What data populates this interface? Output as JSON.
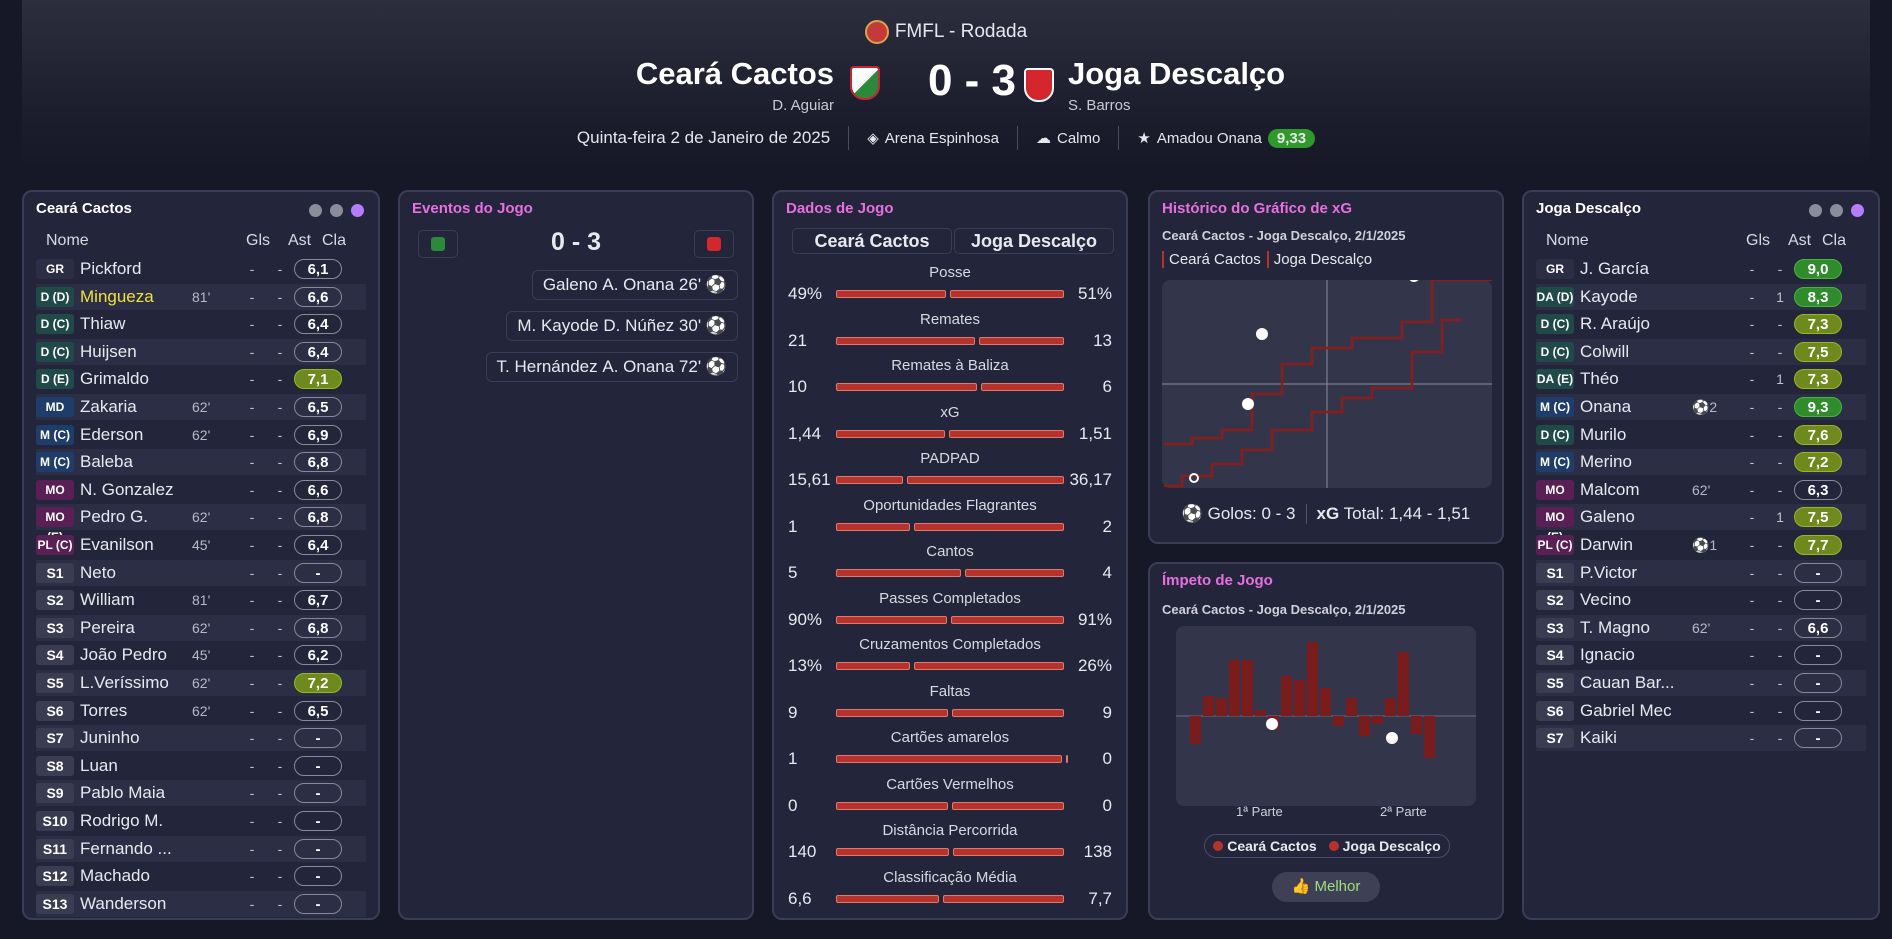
{
  "header": {
    "competition": "FMFL - Rodada",
    "home": "Ceará Cactos",
    "home_manager": "D. Aguiar",
    "away": "Joga Descalço",
    "away_manager": "S. Barros",
    "score": "0 - 3",
    "date": "Quinta-feira 2 de Janeiro de 2025",
    "stadium": "Arena Espinhosa",
    "weather": "Calmo",
    "motm": "Amadou Onana",
    "motm_rating": "9,33"
  },
  "home_panel": {
    "title": "Ceará Cactos",
    "cols": {
      "name": "Nome",
      "gls": "Gls",
      "ast": "Ast",
      "rating": "Cla"
    },
    "players": [
      {
        "pos": "GR",
        "name": "Pickford",
        "sub": "",
        "gls": "-",
        "ast": "-",
        "rating": "6,1"
      },
      {
        "pos": "D (D)",
        "name": "Mingueza",
        "sub": "81'",
        "gls": "-",
        "ast": "-",
        "rating": "6,6"
      },
      {
        "pos": "D (C)",
        "name": "Thiaw",
        "sub": "",
        "gls": "-",
        "ast": "-",
        "rating": "6,4"
      },
      {
        "pos": "D (C)",
        "name": "Huijsen",
        "sub": "",
        "gls": "-",
        "ast": "-",
        "rating": "6,4"
      },
      {
        "pos": "D (E)",
        "name": "Grimaldo",
        "sub": "",
        "gls": "-",
        "ast": "-",
        "rating": "7,1"
      },
      {
        "pos": "MD",
        "name": "Zakaria",
        "sub": "62'",
        "gls": "-",
        "ast": "-",
        "rating": "6,5"
      },
      {
        "pos": "M (C)",
        "name": "Ederson",
        "sub": "62'",
        "gls": "-",
        "ast": "-",
        "rating": "6,9"
      },
      {
        "pos": "M (C)",
        "name": "Baleba",
        "sub": "",
        "gls": "-",
        "ast": "-",
        "rating": "6,8"
      },
      {
        "pos": "MO (D)",
        "name": "N. Gonzalez",
        "sub": "",
        "gls": "-",
        "ast": "-",
        "rating": "6,6"
      },
      {
        "pos": "MO (E)",
        "name": "Pedro G.",
        "sub": "62'",
        "gls": "-",
        "ast": "-",
        "rating": "6,8"
      },
      {
        "pos": "PL (C)",
        "name": "Evanilson",
        "sub": "45'",
        "gls": "-",
        "ast": "-",
        "rating": "6,4"
      },
      {
        "pos": "S1",
        "name": "Neto",
        "sub": "",
        "gls": "-",
        "ast": "-",
        "rating": "-"
      },
      {
        "pos": "S2",
        "name": "William",
        "sub": "81'",
        "gls": "-",
        "ast": "-",
        "rating": "6,7"
      },
      {
        "pos": "S3",
        "name": "Pereira",
        "sub": "62'",
        "gls": "-",
        "ast": "-",
        "rating": "6,8"
      },
      {
        "pos": "S4",
        "name": "João Pedro",
        "sub": "45'",
        "gls": "-",
        "ast": "-",
        "rating": "6,2"
      },
      {
        "pos": "S5",
        "name": "L.Veríssimo",
        "sub": "62'",
        "gls": "-",
        "ast": "-",
        "rating": "7,2"
      },
      {
        "pos": "S6",
        "name": "Torres",
        "sub": "62'",
        "gls": "-",
        "ast": "-",
        "rating": "6,5"
      },
      {
        "pos": "S7",
        "name": "Juninho",
        "sub": "",
        "gls": "-",
        "ast": "-",
        "rating": "-"
      },
      {
        "pos": "S8",
        "name": "Luan",
        "sub": "",
        "gls": "-",
        "ast": "-",
        "rating": "-"
      },
      {
        "pos": "S9",
        "name": "Pablo Maia",
        "sub": "",
        "gls": "-",
        "ast": "-",
        "rating": "-"
      },
      {
        "pos": "S10",
        "name": "Rodrigo M.",
        "sub": "",
        "gls": "-",
        "ast": "-",
        "rating": "-"
      },
      {
        "pos": "S11",
        "name": "Fernando ...",
        "sub": "",
        "gls": "-",
        "ast": "-",
        "rating": "-"
      },
      {
        "pos": "S12",
        "name": "Machado",
        "sub": "",
        "gls": "-",
        "ast": "-",
        "rating": "-"
      },
      {
        "pos": "S13",
        "name": "Wanderson",
        "sub": "",
        "gls": "-",
        "ast": "-",
        "rating": "-"
      }
    ]
  },
  "events": {
    "title": "Eventos do Jogo",
    "score": "0 - 3",
    "items": [
      {
        "assist": "Galeno",
        "scorer": "A. Onana 26'"
      },
      {
        "assist": "M. Kayode",
        "scorer": "D. Núñez 30'"
      },
      {
        "assist": "T. Hernández",
        "scorer": "A. Onana 72'"
      }
    ]
  },
  "stats": {
    "title": "Dados de Jogo",
    "home": "Ceará Cactos",
    "away": "Joga Descalço",
    "rows": [
      {
        "label": "Posse",
        "home": "49%",
        "away": "51%",
        "h": 49,
        "a": 51
      },
      {
        "label": "Remates",
        "home": "21",
        "away": "13",
        "h": 21,
        "a": 13
      },
      {
        "label": "Remates à Baliza",
        "home": "10",
        "away": "6",
        "h": 10,
        "a": 6
      },
      {
        "label": "xG",
        "home": "1,44",
        "away": "1,51",
        "h": 1.44,
        "a": 1.51
      },
      {
        "label": "PADPAD",
        "home": "15,61",
        "away": "36,17",
        "h": 15.61,
        "a": 36.17
      },
      {
        "label": "Oportunidades Flagrantes",
        "home": "1",
        "away": "2",
        "h": 1,
        "a": 2
      },
      {
        "label": "Cantos",
        "home": "5",
        "away": "4",
        "h": 5,
        "a": 4
      },
      {
        "label": "Passes Completados",
        "home": "90%",
        "away": "91%",
        "h": 90,
        "a": 91
      },
      {
        "label": "Cruzamentos Completados",
        "home": "13%",
        "away": "26%",
        "h": 13,
        "a": 26
      },
      {
        "label": "Faltas",
        "home": "9",
        "away": "9",
        "h": 9,
        "a": 9
      },
      {
        "label": "Cartões amarelos",
        "home": "1",
        "away": "0",
        "h": 1,
        "a": 0
      },
      {
        "label": "Cartões Vermelhos",
        "home": "0",
        "away": "0",
        "h": 0,
        "a": 0
      },
      {
        "label": "Distância Percorrida",
        "home": "140",
        "away": "138",
        "h": 140,
        "a": 138
      },
      {
        "label": "Classificação Média",
        "home": "6,6",
        "away": "7,7",
        "h": 6.6,
        "a": 7.7
      }
    ]
  },
  "xg": {
    "title": "Histórico do Gráfico de xG",
    "subtitle": "Ceará Cactos - Joga Descalço, 2/1/2025",
    "legend_home": "Ceará Cactos",
    "legend_away": "Joga Descalço",
    "goals": "Golos: 0 - 3",
    "xg_label": "xG",
    "xg_total": "Total: 1,44 - 1,51"
  },
  "momentum": {
    "title": "Ímpeto de Jogo",
    "subtitle": "Ceará Cactos - Joga Descalço, 2/1/2025",
    "half1": "1ª Parte",
    "half2": "2ª Parte",
    "legend_home": "Ceará Cactos",
    "legend_away": "Joga Descalço",
    "button": "Melhor"
  },
  "away_panel": {
    "title": "Joga Descalço",
    "cols": {
      "name": "Nome",
      "gls": "Gls",
      "ast": "Ast",
      "rating": "Cla"
    },
    "players": [
      {
        "pos": "GR",
        "name": "J. García",
        "sub": "",
        "gls": "-",
        "ast": "-",
        "rating": "9,0"
      },
      {
        "pos": "DA (D)",
        "name": "Kayode",
        "sub": "",
        "gls": "-",
        "ast": "1",
        "rating": "8,3"
      },
      {
        "pos": "D (C)",
        "name": "R. Araújo",
        "sub": "",
        "gls": "-",
        "ast": "-",
        "rating": "7,3"
      },
      {
        "pos": "D (C)",
        "name": "Colwill",
        "sub": "",
        "gls": "-",
        "ast": "-",
        "rating": "7,5"
      },
      {
        "pos": "DA (E)",
        "name": "Théo",
        "sub": "",
        "gls": "-",
        "ast": "1",
        "rating": "7,3"
      },
      {
        "pos": "M (C)",
        "name": "Onana",
        "sub": "⚽2",
        "gls": "-",
        "ast": "-",
        "rating": "9,3"
      },
      {
        "pos": "D (C)",
        "name": "Murilo",
        "sub": "",
        "gls": "-",
        "ast": "-",
        "rating": "7,6"
      },
      {
        "pos": "M (C)",
        "name": "Merino",
        "sub": "",
        "gls": "-",
        "ast": "-",
        "rating": "7,2"
      },
      {
        "pos": "MO (D)",
        "name": "Malcom",
        "sub": "62'",
        "gls": "-",
        "ast": "-",
        "rating": "6,3"
      },
      {
        "pos": "MO (E)",
        "name": "Galeno",
        "sub": "",
        "gls": "-",
        "ast": "1",
        "rating": "7,5"
      },
      {
        "pos": "PL (C)",
        "name": "Darwin",
        "sub": "⚽1",
        "gls": "-",
        "ast": "-",
        "rating": "7,7"
      },
      {
        "pos": "S1",
        "name": "P.Victor",
        "sub": "",
        "gls": "-",
        "ast": "-",
        "rating": "-"
      },
      {
        "pos": "S2",
        "name": "Vecino",
        "sub": "",
        "gls": "-",
        "ast": "-",
        "rating": "-"
      },
      {
        "pos": "S3",
        "name": "T. Magno",
        "sub": "62'",
        "gls": "-",
        "ast": "-",
        "rating": "6,6"
      },
      {
        "pos": "S4",
        "name": "Ignacio",
        "sub": "",
        "gls": "-",
        "ast": "-",
        "rating": "-"
      },
      {
        "pos": "S5",
        "name": "Cauan Bar...",
        "sub": "",
        "gls": "-",
        "ast": "-",
        "rating": "-"
      },
      {
        "pos": "S6",
        "name": "Gabriel Mec",
        "sub": "",
        "gls": "-",
        "ast": "-",
        "rating": "-"
      },
      {
        "pos": "S7",
        "name": "Kaiki",
        "sub": "",
        "gls": "-",
        "ast": "-",
        "rating": "-"
      }
    ]
  }
}
